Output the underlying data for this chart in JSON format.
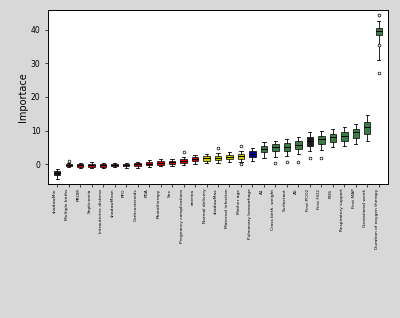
{
  "categories": [
    "shadowMin",
    "Multiple births",
    "PROM",
    "Septicemia",
    "Intrauterine distress",
    "shadowMean",
    "PFO",
    "Corticosteroids",
    "PDA",
    "Phototherapy",
    "Sex",
    "Pregnancy complications",
    "anemia",
    "Normal delivery",
    "shadowMax",
    "Maternal infection",
    "Mother age",
    "Pulmonary hemorrhage",
    "A1",
    "Cross birth. weight",
    "Surfactant",
    "A5",
    "First PCO2",
    "First FiO2",
    "RDS",
    "Respiratory support",
    "First MAP",
    "Gestational week",
    "Duration of oxygen therapy"
  ],
  "box_stats": [
    {
      "q1": -3.2,
      "med": -2.5,
      "q3": -2.0,
      "whislo": -4.5,
      "whishi": -1.5,
      "fliers": []
    },
    {
      "q1": -0.6,
      "med": -0.2,
      "q3": 0.2,
      "whislo": -0.9,
      "whishi": 0.5,
      "fliers": [
        1.1
      ]
    },
    {
      "q1": -0.7,
      "med": -0.3,
      "q3": 0.1,
      "whislo": -1.1,
      "whishi": 0.5,
      "fliers": []
    },
    {
      "q1": -0.7,
      "med": -0.2,
      "q3": 0.2,
      "whislo": -1.0,
      "whishi": 0.6,
      "fliers": []
    },
    {
      "q1": -0.7,
      "med": -0.2,
      "q3": 0.2,
      "whislo": -1.0,
      "whishi": 0.5,
      "fliers": []
    },
    {
      "q1": -0.5,
      "med": -0.1,
      "q3": 0.2,
      "whislo": -0.8,
      "whishi": 0.5,
      "fliers": []
    },
    {
      "q1": -0.6,
      "med": -0.2,
      "q3": 0.2,
      "whislo": -1.1,
      "whishi": 0.5,
      "fliers": []
    },
    {
      "q1": -0.5,
      "med": 0.0,
      "q3": 0.4,
      "whislo": -1.0,
      "whishi": 0.8,
      "fliers": []
    },
    {
      "q1": -0.3,
      "med": 0.1,
      "q3": 0.6,
      "whislo": -0.8,
      "whishi": 1.2,
      "fliers": []
    },
    {
      "q1": -0.1,
      "med": 0.4,
      "q3": 0.9,
      "whislo": -0.6,
      "whishi": 1.5,
      "fliers": []
    },
    {
      "q1": 0.1,
      "med": 0.6,
      "q3": 1.1,
      "whislo": -0.4,
      "whishi": 1.7,
      "fliers": []
    },
    {
      "q1": 0.3,
      "med": 0.9,
      "q3": 1.5,
      "whislo": -0.2,
      "whishi": 2.1,
      "fliers": [
        3.5
      ]
    },
    {
      "q1": 0.9,
      "med": 1.5,
      "q3": 2.1,
      "whislo": 0.2,
      "whishi": 2.8,
      "fliers": []
    },
    {
      "q1": 1.1,
      "med": 1.8,
      "q3": 2.4,
      "whislo": 0.4,
      "whishi": 3.0,
      "fliers": []
    },
    {
      "q1": 1.3,
      "med": 2.0,
      "q3": 2.6,
      "whislo": 0.5,
      "whishi": 3.2,
      "fliers": [
        4.8
      ]
    },
    {
      "q1": 1.5,
      "med": 2.2,
      "q3": 2.9,
      "whislo": 0.6,
      "whishi": 3.5,
      "fliers": []
    },
    {
      "q1": 1.6,
      "med": 2.4,
      "q3": 3.1,
      "whislo": 0.7,
      "whishi": 3.9,
      "fliers": [
        0.0,
        5.5
      ]
    },
    {
      "q1": 2.2,
      "med": 3.0,
      "q3": 3.8,
      "whislo": 1.0,
      "whishi": 4.8,
      "fliers": []
    },
    {
      "q1": 3.5,
      "med": 4.5,
      "q3": 5.3,
      "whislo": 2.0,
      "whishi": 6.5,
      "fliers": []
    },
    {
      "q1": 3.8,
      "med": 5.0,
      "q3": 5.9,
      "whislo": 2.3,
      "whishi": 7.0,
      "fliers": [
        0.5
      ]
    },
    {
      "q1": 4.0,
      "med": 5.2,
      "q3": 6.2,
      "whislo": 2.5,
      "whishi": 7.5,
      "fliers": [
        0.8
      ]
    },
    {
      "q1": 4.5,
      "med": 5.8,
      "q3": 6.8,
      "whislo": 3.0,
      "whishi": 8.0,
      "fliers": [
        0.8
      ]
    },
    {
      "q1": 5.5,
      "med": 7.0,
      "q3": 8.0,
      "whislo": 3.8,
      "whishi": 9.5,
      "fliers": [
        1.8
      ]
    },
    {
      "q1": 6.0,
      "med": 7.5,
      "q3": 8.5,
      "whislo": 4.3,
      "whishi": 10.0,
      "fliers": [
        1.8
      ]
    },
    {
      "q1": 6.5,
      "med": 8.0,
      "q3": 9.0,
      "whislo": 5.0,
      "whishi": 10.5,
      "fliers": []
    },
    {
      "q1": 7.0,
      "med": 8.5,
      "q3": 9.5,
      "whislo": 5.5,
      "whishi": 11.0,
      "fliers": []
    },
    {
      "q1": 7.8,
      "med": 9.5,
      "q3": 10.5,
      "whislo": 6.0,
      "whishi": 12.0,
      "fliers": []
    },
    {
      "q1": 9.0,
      "med": 11.0,
      "q3": 12.5,
      "whislo": 7.0,
      "whishi": 14.5,
      "fliers": []
    },
    {
      "q1": 38.5,
      "med": 39.5,
      "q3": 40.5,
      "whislo": 31.0,
      "whishi": 42.5,
      "fliers": [
        27.0,
        35.5,
        44.5
      ]
    }
  ],
  "box_colors": [
    "#1a1a1a",
    "#cc0000",
    "#cc0000",
    "#cc0000",
    "#cc0000",
    "#cc0000",
    "#cc0000",
    "#cc0000",
    "#cc0000",
    "#cc0000",
    "#cc0000",
    "#cc0000",
    "#cc0000",
    "#cccc00",
    "#cccc00",
    "#cccc00",
    "#cccc00",
    "#00008b",
    "#3a7d44",
    "#3a7d44",
    "#3a7d44",
    "#3a7d44",
    "#1a1a1a",
    "#3a7d44",
    "#3a7d44",
    "#3a7d44",
    "#3a7d44",
    "#3a7d44",
    "#3a7d44"
  ],
  "ylabel": "Importace",
  "ylim": [
    -6,
    46
  ],
  "yticks": [
    0,
    10,
    20,
    30,
    40
  ],
  "fig_bg": "#d8d8d8",
  "plot_bg": "#ffffff"
}
